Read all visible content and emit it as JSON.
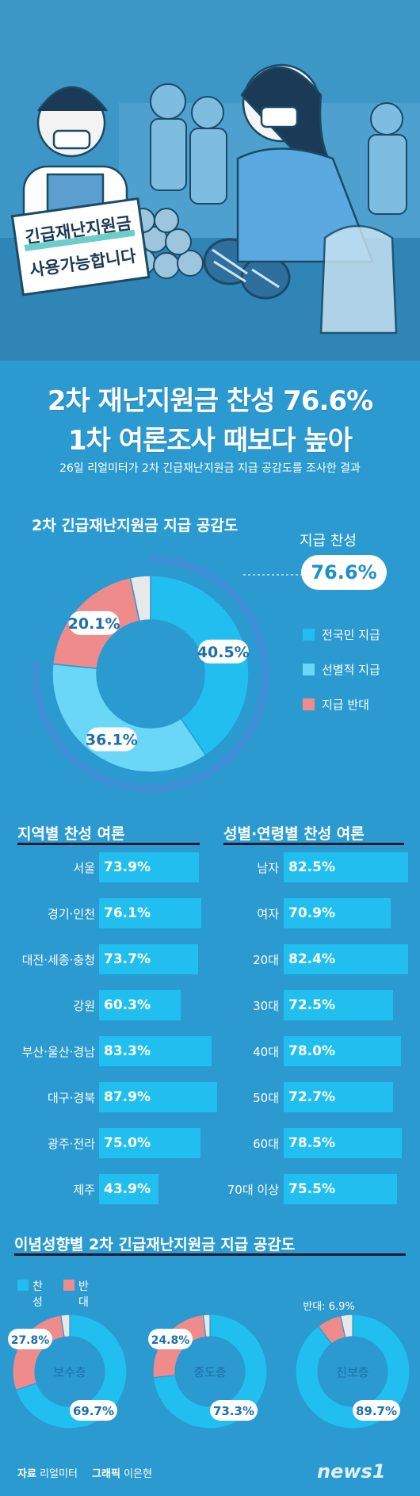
{
  "headline": {
    "line1": "2차 재난지원금 찬성 76.6%",
    "line2": "1차 여론조사 때보다 높아"
  },
  "subtitle": "26일 리얼미터가 2차 긴급재난지원금 지급 공감도를 조사한 결과",
  "illustration": {
    "sign_line1": "긴급재난지원금",
    "sign_line2": "사용가능합니다"
  },
  "chart_data": [
    {
      "type": "pie",
      "title": "2차 긴급재난지원금 지급 공감도",
      "slices": [
        {
          "name": "전국민 지급",
          "value": 40.5,
          "label": "40.5%",
          "color": "#21bff0"
        },
        {
          "name": "선별적 지급",
          "value": 36.1,
          "label": "36.1%",
          "color": "#6ad7f7"
        },
        {
          "name": "지급 반대",
          "value": 20.1,
          "label": "20.1%",
          "color": "#f08b8b"
        },
        {
          "name": "",
          "value": 3.3,
          "label": "",
          "color": "#e8e8e8"
        }
      ],
      "outer_ring": {
        "name": "지급 찬성",
        "value": 76.6,
        "label": "76.6%",
        "color": "#3f8fd6"
      },
      "legend": [
        "전국민 지급",
        "선별적 지급",
        "지급 반대"
      ]
    },
    {
      "type": "bar",
      "title": "지역별 찬성 여론",
      "categories": [
        "서울",
        "경기·인천",
        "대전·세종·충청",
        "강원",
        "부산·울산·경남",
        "대구·경북",
        "광주·전라",
        "제주"
      ],
      "values": [
        73.9,
        76.1,
        73.7,
        60.3,
        83.3,
        87.9,
        75.0,
        43.9
      ],
      "labels": [
        "73.9%",
        "76.1%",
        "73.7%",
        "60.3%",
        "83.3%",
        "87.9%",
        "75.0%",
        "43.9%"
      ]
    },
    {
      "type": "bar",
      "title": "성별·연령별 찬성 여론",
      "categories": [
        "남자",
        "여자",
        "20대",
        "30대",
        "40대",
        "50대",
        "60대",
        "70대 이상"
      ],
      "values": [
        82.5,
        70.9,
        82.4,
        72.5,
        78.0,
        72.7,
        78.5,
        75.5
      ],
      "labels": [
        "82.5%",
        "70.9%",
        "82.4%",
        "72.5%",
        "78.0%",
        "72.7%",
        "78.5%",
        "75.5%"
      ]
    },
    {
      "type": "pie",
      "title": "이념성향별 2차 긴급재난지원금 지급 공감도",
      "legend": [
        {
          "name": "찬성",
          "color": "#21bff0"
        },
        {
          "name": "반대",
          "color": "#f08b8b"
        }
      ],
      "groups": [
        {
          "name": "보수층",
          "support": 69.7,
          "support_label": "69.7%",
          "oppose": 27.8,
          "oppose_label": "27.8%"
        },
        {
          "name": "중도층",
          "support": 73.3,
          "support_label": "73.3%",
          "oppose": 24.8,
          "oppose_label": "24.8%"
        },
        {
          "name": "진보층",
          "support": 89.7,
          "support_label": "89.7%",
          "oppose": 6.9,
          "oppose_label": "반대: 6.9%"
        }
      ]
    }
  ],
  "footer": {
    "source_label": "자료",
    "source": "리얼미터",
    "graphic_label": "그래픽",
    "graphic": "이은현",
    "brand": "news1"
  }
}
